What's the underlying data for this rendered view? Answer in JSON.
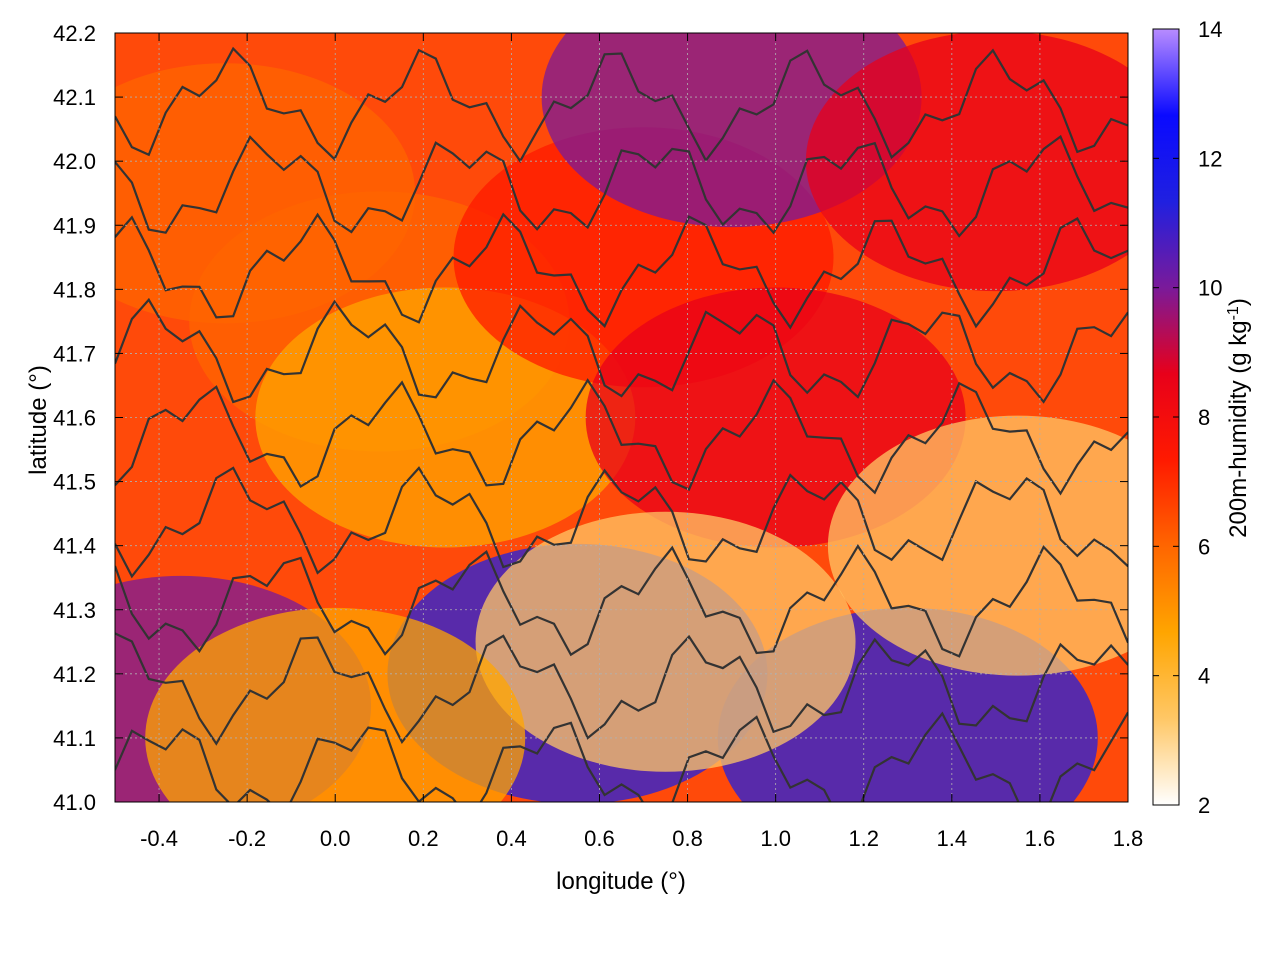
{
  "chart_data": {
    "type": "heatmap",
    "xlabel": "longitude (°)",
    "ylabel": "latitude (°)",
    "xlim": [
      -0.5,
      1.8
    ],
    "ylim": [
      41.0,
      42.2
    ],
    "xticks": [
      -0.4,
      -0.2,
      0.0,
      0.2,
      0.4,
      0.6,
      0.8,
      1.0,
      1.2,
      1.4,
      1.6,
      1.8
    ],
    "xtick_labels": [
      "-0.4",
      "-0.2",
      "0.0",
      "0.2",
      "0.4",
      "0.6",
      "0.8",
      "1.0",
      "1.2",
      "1.4",
      "1.6",
      "1.8"
    ],
    "yticks": [
      41.0,
      41.1,
      41.2,
      41.3,
      41.4,
      41.5,
      41.6,
      41.7,
      41.8,
      41.9,
      42.0,
      42.1,
      42.2
    ],
    "ytick_labels": [
      "41.0",
      "41.1",
      "41.2",
      "41.3",
      "41.4",
      "41.5",
      "41.6",
      "41.7",
      "41.8",
      "41.9",
      "42.0",
      "42.1",
      "42.2"
    ],
    "grid": true,
    "colorbar": {
      "label_main": "200m-humidity (g kg",
      "label_sup": "-1",
      "label_end": ")",
      "range": [
        2,
        14
      ],
      "ticks": [
        2,
        4,
        6,
        8,
        10,
        12,
        14
      ],
      "tick_labels": [
        "2",
        "4",
        "6",
        "8",
        "10",
        "12",
        "14"
      ],
      "palette": [
        "#ffffff",
        "#ffc766",
        "#ffa500",
        "#ff6600",
        "#ff1a00",
        "#e8001a",
        "#7a1a9a",
        "#2020e0",
        "#0a0aff",
        "#b88cff"
      ]
    },
    "field_regions": [
      {
        "lon": -0.25,
        "lat": 41.95,
        "value": 6.0
      },
      {
        "lon": 0.1,
        "lat": 41.75,
        "value": 5.5
      },
      {
        "lon": 0.25,
        "lat": 41.6,
        "value": 4.5
      },
      {
        "lon": 0.7,
        "lat": 41.85,
        "value": 7.8
      },
      {
        "lon": 1.0,
        "lat": 41.6,
        "value": 8.0
      },
      {
        "lon": 0.9,
        "lat": 42.1,
        "value": 10.5
      },
      {
        "lon": 1.5,
        "lat": 42.0,
        "value": 9.0
      },
      {
        "lon": -0.35,
        "lat": 41.15,
        "value": 9.5
      },
      {
        "lon": 0.55,
        "lat": 41.2,
        "value": 11.0
      },
      {
        "lon": 1.3,
        "lat": 41.1,
        "value": 11.5
      },
      {
        "lon": 0.75,
        "lat": 41.25,
        "value": 3.0
      },
      {
        "lon": 1.55,
        "lat": 41.4,
        "value": 3.0
      },
      {
        "lon": 0.0,
        "lat": 41.1,
        "value": 4.5
      }
    ],
    "contour_value": 8
  }
}
